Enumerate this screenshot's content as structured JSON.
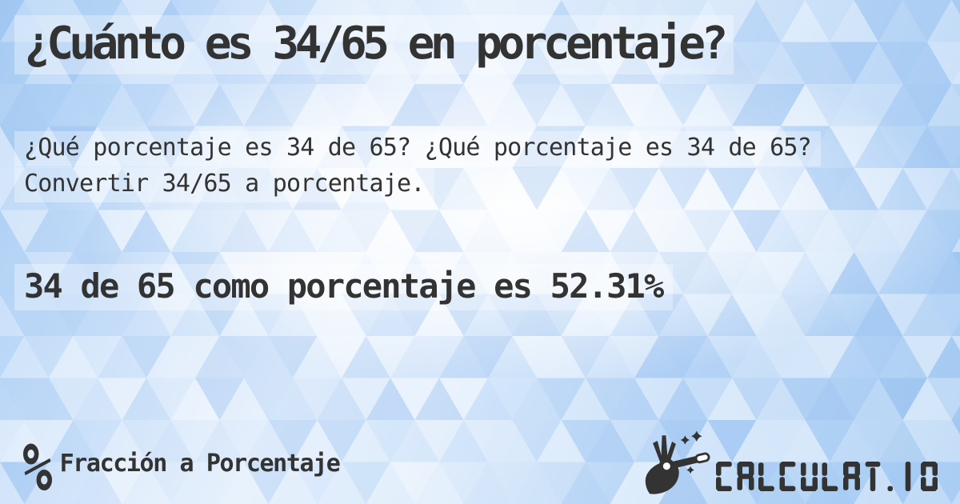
{
  "page": {
    "title": "¿Cuánto es 34/65 en porcentaje?",
    "description": "¿Qué porcentaje es 34 de 65? ¿Qué porcentaje es 34 de 65? Convertir 34/65 a porcentaje.",
    "answer": "34 de 65 como porcentaje es 52.31%"
  },
  "footer": {
    "category_icon_glyph": "%",
    "category_label": "Fracción a Porcentaje",
    "brand_text": "CALCULAT.IO"
  },
  "colors": {
    "text": "#333333",
    "background_blue": "#a9cdf3",
    "background_light": "#eef5fd",
    "highlight_band": "rgba(255,255,255,0.32)"
  }
}
